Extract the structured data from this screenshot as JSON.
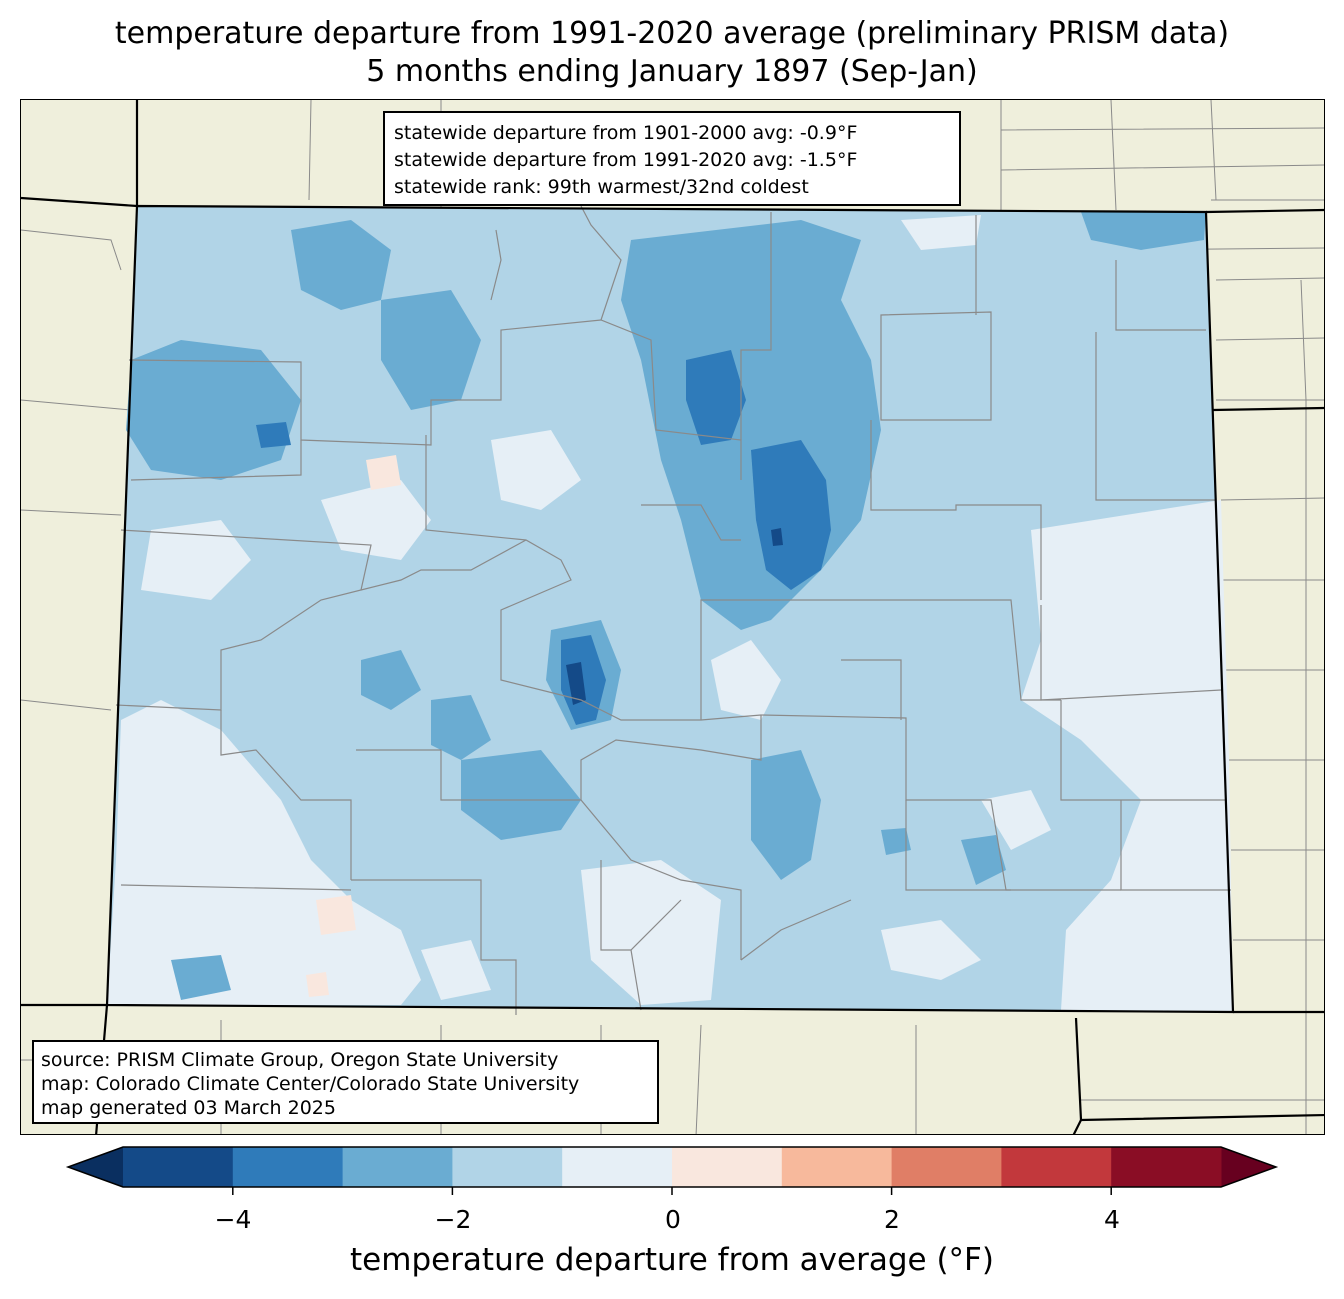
{
  "title": {
    "line1": "temperature departure from 1991-2020 average (preliminary PRISM data)",
    "line2": "5 months ending January 1897 (Sep-Jan)"
  },
  "stats": {
    "line1": "statewide departure from 1901-2000 avg: -0.9°F",
    "line2": "statewide departure from 1991-2020 avg: -1.5°F",
    "line3": "statewide rank: 99th warmest/32nd coldest"
  },
  "source": {
    "line1": "source: PRISM Climate Group, Oregon State University",
    "line2": "map: Colorado Climate Center/Colorado State University",
    "line3": "map generated 03 March 2025"
  },
  "colorbar": {
    "label": "temperature departure from average (°F)",
    "ticks": [
      "−4",
      "−2",
      "0",
      "2",
      "4"
    ],
    "bins": [
      {
        "from": -5,
        "to": -4,
        "color": "#144a88"
      },
      {
        "from": -4,
        "to": -3,
        "color": "#2f7bba"
      },
      {
        "from": -3,
        "to": -2,
        "color": "#6aacd2"
      },
      {
        "from": -2,
        "to": -1,
        "color": "#b1d4e7"
      },
      {
        "from": -1,
        "to": 0,
        "color": "#e6eff6"
      },
      {
        "from": 0,
        "to": 1,
        "color": "#f9e7de"
      },
      {
        "from": 1,
        "to": 2,
        "color": "#f7b99c"
      },
      {
        "from": 2,
        "to": 3,
        "color": "#e07e66"
      },
      {
        "from": 3,
        "to": 4,
        "color": "#c2383c"
      },
      {
        "from": 4,
        "to": 5,
        "color": "#8a0d25"
      }
    ],
    "extend_low_color": "#0a2f60",
    "extend_high_color": "#67001f"
  },
  "colors": {
    "land": "#efefdc",
    "county_line": "#8a8a8a",
    "state_line": "#000000"
  }
}
